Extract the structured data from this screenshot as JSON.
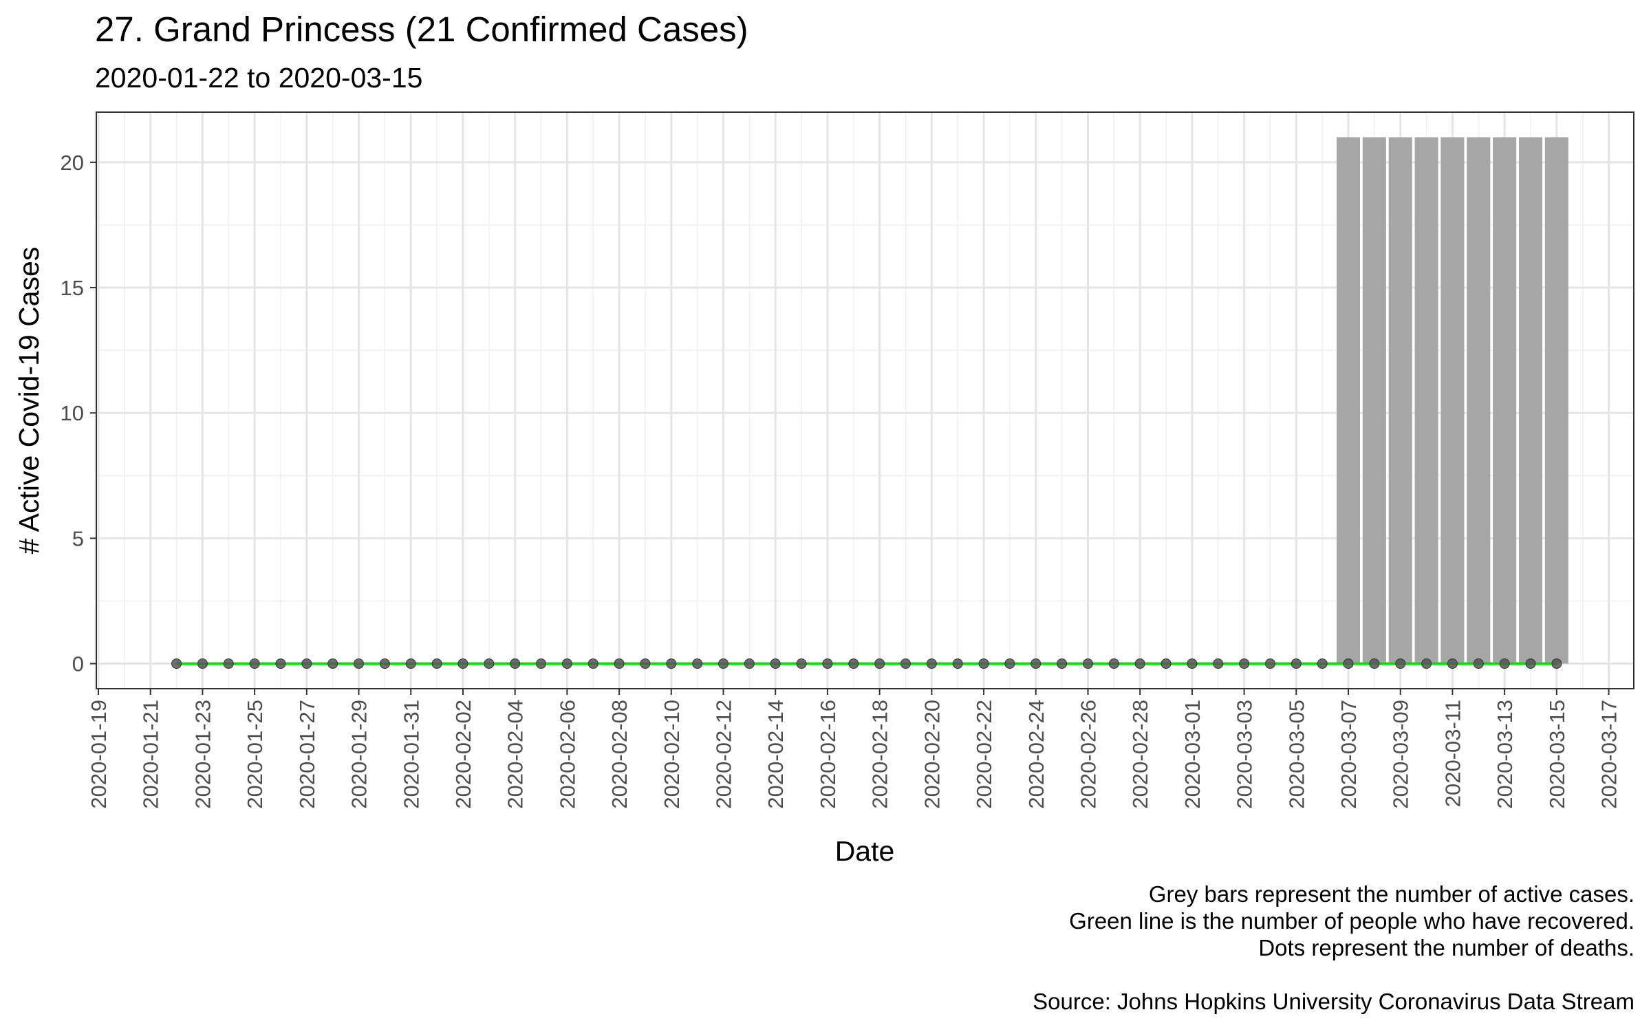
{
  "chart_data": {
    "type": "bar",
    "title": "27. Grand Princess (21 Confirmed Cases)",
    "subtitle": "2020-01-22 to 2020-03-15",
    "xlabel": "Date",
    "ylabel": "# Active Covid-19 Cases",
    "x_start": "2020-01-22",
    "x_end": "2020-03-15",
    "xlim": [
      "2020-01-19",
      "2020-03-17"
    ],
    "ylim": [
      -1,
      22
    ],
    "x_ticks": [
      "2020-01-19",
      "2020-01-21",
      "2020-01-23",
      "2020-01-25",
      "2020-01-27",
      "2020-01-29",
      "2020-01-31",
      "2020-02-02",
      "2020-02-04",
      "2020-02-06",
      "2020-02-08",
      "2020-02-10",
      "2020-02-12",
      "2020-02-14",
      "2020-02-16",
      "2020-02-18",
      "2020-02-20",
      "2020-02-22",
      "2020-02-24",
      "2020-02-26",
      "2020-02-28",
      "2020-03-01",
      "2020-03-03",
      "2020-03-05",
      "2020-03-07",
      "2020-03-09",
      "2020-03-11",
      "2020-03-13",
      "2020-03-15",
      "2020-03-17"
    ],
    "y_ticks": [
      0,
      5,
      10,
      15,
      20
    ],
    "grid": true,
    "series": [
      {
        "name": "Active cases",
        "kind": "bar",
        "color": "#a6a6a6",
        "start": "2020-03-07",
        "values": [
          21,
          21,
          21,
          21,
          21,
          21,
          21,
          21,
          21
        ]
      },
      {
        "name": "Recovered",
        "kind": "line",
        "color": "#00e600",
        "start": "2020-01-22",
        "constant_value": 0
      },
      {
        "name": "Deaths",
        "kind": "points",
        "color": "#555555",
        "start": "2020-01-22",
        "constant_value": 0
      }
    ]
  },
  "caption": {
    "line1": "Grey bars represent the number of active cases.",
    "line2": "Green line is the number of people who have recovered.",
    "line3": "Dots represent the number of deaths.",
    "source": "Source: Johns Hopkins University Coronavirus Data Stream"
  }
}
